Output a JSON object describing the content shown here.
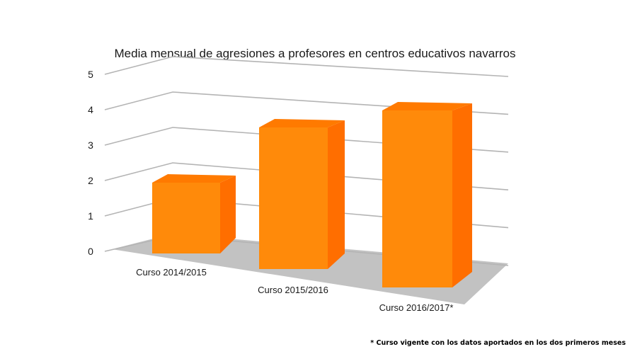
{
  "chart_data": {
    "type": "bar",
    "title": "Media mensual de agresiones a profesores en centros educativos navarros",
    "categories": [
      "Curso 2014/2015",
      "Curso 2015/2016",
      "Curso 2016/2017*"
    ],
    "values": [
      2,
      4,
      5
    ],
    "ylim": [
      0,
      5
    ],
    "yticks": [
      "0",
      "1",
      "2",
      "3",
      "4",
      "5"
    ],
    "grid": true,
    "style": "3d-perspective",
    "footnote": "* Curso vigente con los datos aportados en los dos primeros meses"
  },
  "colors": {
    "bar_front": "#ff8a0a",
    "bar_side": "#ff6e00",
    "bar_top": "#ff7a00",
    "floor": "#c2c2c2",
    "grid": "#b4b4b4"
  }
}
